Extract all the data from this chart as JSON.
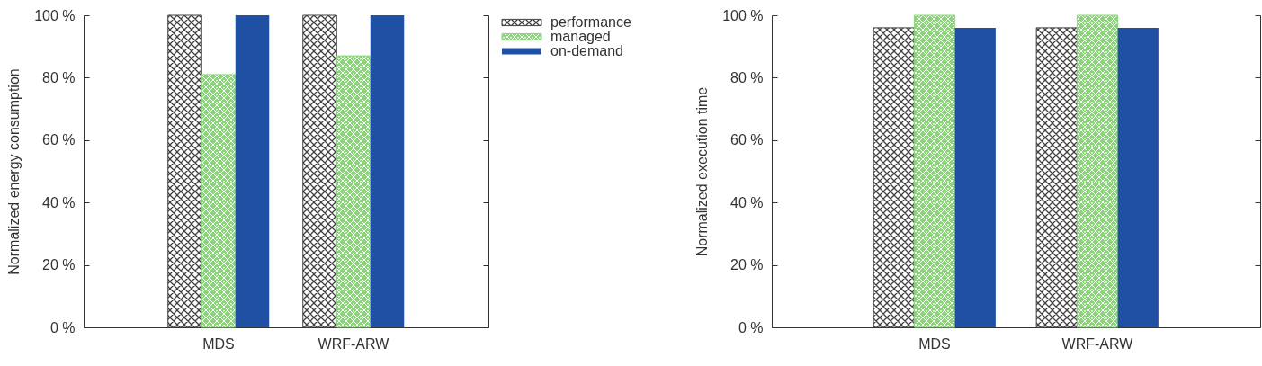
{
  "chart_data": [
    {
      "type": "bar",
      "ylabel": "Normalized energy consumption",
      "categories": [
        "MDS",
        "WRF-ARW"
      ],
      "series": [
        {
          "name": "performance",
          "color": "#404040",
          "values": [
            100,
            100
          ]
        },
        {
          "name": "managed",
          "color": "#8cd47c",
          "values": [
            81,
            87
          ]
        },
        {
          "name": "on-demand",
          "color": "#2050a4",
          "values": [
            100,
            100
          ]
        }
      ],
      "ylim": [
        0,
        100
      ],
      "yticks": [
        {
          "value": 0,
          "label": "0 %"
        },
        {
          "value": 20,
          "label": "20 %"
        },
        {
          "value": 40,
          "label": "40 %"
        },
        {
          "value": 60,
          "label": "60 %"
        },
        {
          "value": 80,
          "label": "80 %"
        },
        {
          "value": 100,
          "label": "100 %"
        }
      ],
      "legend": "top right"
    },
    {
      "type": "bar",
      "ylabel": "Normalized execution time",
      "categories": [
        "MDS",
        "WRF-ARW"
      ],
      "series": [
        {
          "color": "#404040",
          "values": [
            96,
            96
          ]
        },
        {
          "color": "#8cd47c",
          "values": [
            100,
            100
          ]
        },
        {
          "color": "#2050a4",
          "values": [
            96,
            96
          ]
        }
      ],
      "ylim": [
        0,
        100
      ],
      "yticks": [
        {
          "value": 0,
          "label": "0 %"
        },
        {
          "value": 20,
          "label": "20 %"
        },
        {
          "value": 40,
          "label": "40 %"
        },
        {
          "value": 60,
          "label": "60 %"
        },
        {
          "value": 80,
          "label": "80 %"
        },
        {
          "value": 100,
          "label": "100 %"
        }
      ]
    }
  ]
}
